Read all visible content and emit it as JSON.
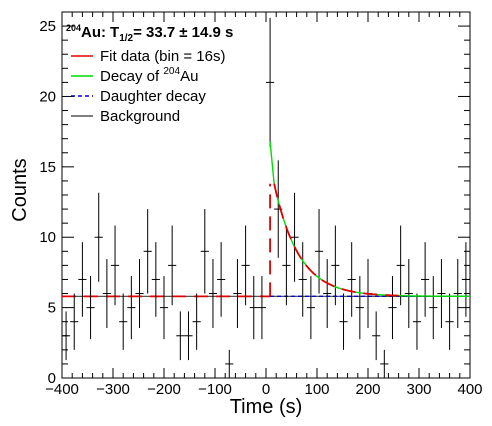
{
  "chart_data": {
    "type": "scatter",
    "xlabel": "Time (s)",
    "ylabel": "Counts",
    "xlim": [
      -400,
      400
    ],
    "ylim": [
      0,
      26
    ],
    "xticks": [
      -400,
      -300,
      -200,
      -100,
      0,
      100,
      200,
      300,
      400
    ],
    "yticks": [
      0,
      5,
      10,
      15,
      20,
      25
    ],
    "tick_labels_x": [
      "−400",
      "−300",
      "−200",
      "−100",
      "0",
      "100",
      "200",
      "300",
      "400"
    ],
    "tick_labels_y": [
      "0",
      "5",
      "10",
      "15",
      "20",
      "25"
    ],
    "bin_width": 16,
    "annotation": {
      "mass": "204",
      "element": "Au:",
      "t": "T",
      "sub": "1/2",
      "value": "= 33.7",
      "pm": "± 14.9 s"
    },
    "legend": {
      "placement": "top-left",
      "items": [
        {
          "label_pre": "Fit data (bin = 16s)",
          "color": "#e00000",
          "style": "solid"
        },
        {
          "label_pre": "Decay of ",
          "sup": "204",
          "label_post": "Au",
          "color": "#00dd00",
          "style": "solid"
        },
        {
          "label_pre": "Daughter decay",
          "color": "#0000cc",
          "style": "dashed"
        },
        {
          "label_pre": "Background",
          "color": "#555555",
          "style": "solid"
        }
      ]
    },
    "background_level": 5.8,
    "fit_start": 8,
    "fit_peak_x": 16,
    "fit_peak_y": 13.8,
    "half_life": 33.7,
    "points": [
      {
        "x": -392,
        "y": 3,
        "e": 1.73
      },
      {
        "x": -376,
        "y": 4,
        "e": 2.0
      },
      {
        "x": -360,
        "y": 7,
        "e": 2.65
      },
      {
        "x": -344,
        "y": 5,
        "e": 2.24
      },
      {
        "x": -328,
        "y": 10,
        "e": 3.16
      },
      {
        "x": -312,
        "y": 6,
        "e": 2.45
      },
      {
        "x": -296,
        "y": 8,
        "e": 2.83
      },
      {
        "x": -280,
        "y": 4,
        "e": 2.0
      },
      {
        "x": -264,
        "y": 5,
        "e": 2.24
      },
      {
        "x": -248,
        "y": 6,
        "e": 2.45
      },
      {
        "x": -232,
        "y": 9,
        "e": 3.0
      },
      {
        "x": -216,
        "y": 7,
        "e": 2.65
      },
      {
        "x": -200,
        "y": 5,
        "e": 2.24
      },
      {
        "x": -184,
        "y": 8,
        "e": 2.83
      },
      {
        "x": -168,
        "y": 3,
        "e": 1.73
      },
      {
        "x": -152,
        "y": 3,
        "e": 1.73
      },
      {
        "x": -136,
        "y": 4,
        "e": 2.0
      },
      {
        "x": -120,
        "y": 9,
        "e": 3.0
      },
      {
        "x": -104,
        "y": 6,
        "e": 2.45
      },
      {
        "x": -88,
        "y": 7,
        "e": 2.65
      },
      {
        "x": -72,
        "y": 1,
        "e": 1.0
      },
      {
        "x": -56,
        "y": 6,
        "e": 2.45
      },
      {
        "x": -40,
        "y": 8,
        "e": 2.83
      },
      {
        "x": -24,
        "y": 5,
        "e": 2.24
      },
      {
        "x": -8,
        "y": 5,
        "e": 2.24
      },
      {
        "x": 8,
        "y": 21,
        "e": 4.58
      },
      {
        "x": 24,
        "y": 12,
        "e": 3.46
      },
      {
        "x": 40,
        "y": 8,
        "e": 2.83
      },
      {
        "x": 56,
        "y": 10,
        "e": 3.16
      },
      {
        "x": 72,
        "y": 7,
        "e": 2.65
      },
      {
        "x": 88,
        "y": 5,
        "e": 2.24
      },
      {
        "x": 104,
        "y": 9,
        "e": 3.0
      },
      {
        "x": 120,
        "y": 6,
        "e": 2.45
      },
      {
        "x": 136,
        "y": 8,
        "e": 2.83
      },
      {
        "x": 152,
        "y": 4,
        "e": 2.0
      },
      {
        "x": 168,
        "y": 7,
        "e": 2.65
      },
      {
        "x": 184,
        "y": 5,
        "e": 2.24
      },
      {
        "x": 200,
        "y": 6,
        "e": 2.45
      },
      {
        "x": 216,
        "y": 3,
        "e": 1.73
      },
      {
        "x": 232,
        "y": 1,
        "e": 1.0
      },
      {
        "x": 248,
        "y": 5,
        "e": 2.24
      },
      {
        "x": 264,
        "y": 8,
        "e": 2.83
      },
      {
        "x": 280,
        "y": 6,
        "e": 2.45
      },
      {
        "x": 296,
        "y": 4,
        "e": 2.0
      },
      {
        "x": 312,
        "y": 7,
        "e": 2.65
      },
      {
        "x": 328,
        "y": 5,
        "e": 2.24
      },
      {
        "x": 344,
        "y": 6,
        "e": 2.45
      },
      {
        "x": 360,
        "y": 4,
        "e": 2.0
      },
      {
        "x": 376,
        "y": 6,
        "e": 2.45
      },
      {
        "x": 392,
        "y": 7,
        "e": 2.65
      }
    ]
  }
}
